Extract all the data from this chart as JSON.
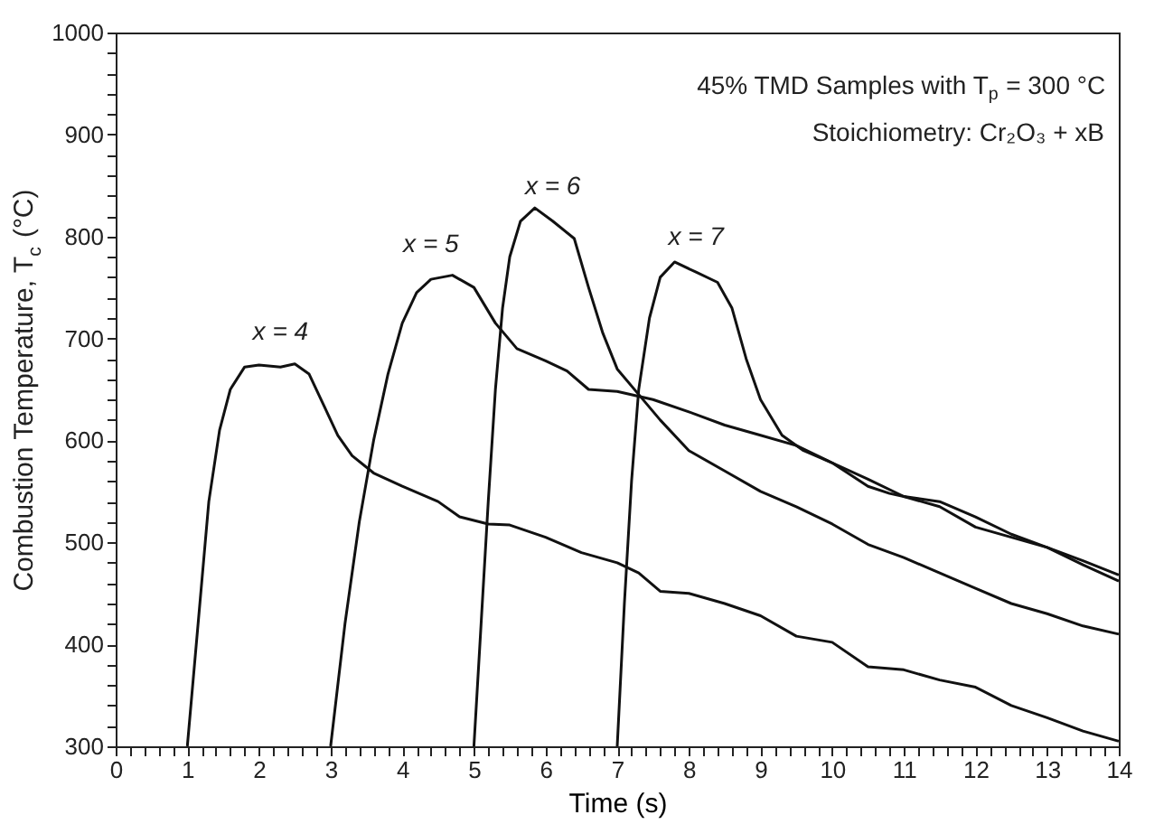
{
  "chart_data": {
    "type": "line",
    "xlabel": "Time (s)",
    "ylabel": "Combustion Temperature, T$_{c}$ (°C)",
    "xlim": [
      0,
      14
    ],
    "ylim": [
      300,
      1000
    ],
    "xticks": [
      0,
      {
        "value": 0.2,
        "label": null
      },
      {
        "value": 0.4,
        "label": null
      },
      {
        "value": 0.6,
        "label": null
      },
      {
        "value": 0.8,
        "label": null
      },
      1,
      {
        "value": 1.2,
        "label": null
      },
      {
        "value": 1.4,
        "label": null
      },
      {
        "value": 1.6,
        "label": null
      },
      {
        "value": 1.8,
        "label": null
      },
      2,
      {
        "value": 2.2,
        "label": null
      },
      {
        "value": 2.4,
        "label": null
      },
      {
        "value": 2.6,
        "label": null
      },
      {
        "value": 2.8,
        "label": null
      },
      3,
      {
        "value": 3.2,
        "label": null
      },
      {
        "value": 3.4,
        "label": null
      },
      {
        "value": 3.6,
        "label": null
      },
      {
        "value": 3.8,
        "label": null
      },
      4,
      {
        "value": 4.2,
        "label": null
      },
      {
        "value": 4.4,
        "label": null
      },
      {
        "value": 4.6,
        "label": null
      },
      {
        "value": 4.8,
        "label": null
      },
      5,
      {
        "value": 5.2,
        "label": null
      },
      {
        "value": 5.4,
        "label": null
      },
      {
        "value": 5.6,
        "label": null
      },
      {
        "value": 5.8,
        "label": null
      },
      6,
      {
        "value": 6.2,
        "label": null
      },
      {
        "value": 6.4,
        "label": null
      },
      {
        "value": 6.6,
        "label": null
      },
      {
        "value": 6.8,
        "label": null
      },
      7,
      {
        "value": 7.2,
        "label": null
      },
      {
        "value": 7.4,
        "label": null
      },
      {
        "value": 7.6,
        "label": null
      },
      {
        "value": 7.8,
        "label": null
      },
      8,
      {
        "value": 8.2,
        "label": null
      },
      {
        "value": 8.4,
        "label": null
      },
      {
        "value": 8.6,
        "label": null
      },
      {
        "value": 8.8,
        "label": null
      },
      9,
      {
        "value": 9.2,
        "label": null
      },
      {
        "value": 9.4,
        "label": null
      },
      {
        "value": 9.6,
        "label": null
      },
      {
        "value": 9.8,
        "label": null
      },
      10,
      {
        "value": 10.2,
        "label": null
      },
      {
        "value": 10.4,
        "label": null
      },
      {
        "value": 10.6,
        "label": null
      },
      {
        "value": 10.8,
        "label": null
      },
      11,
      {
        "value": 11.2,
        "label": null
      },
      {
        "value": 11.4,
        "label": null
      },
      {
        "value": 11.6,
        "label": null
      },
      {
        "value": 11.8,
        "label": null
      },
      12,
      {
        "value": 12.2,
        "label": null
      },
      {
        "value": 12.4,
        "label": null
      },
      {
        "value": 12.6,
        "label": null
      },
      {
        "value": 12.8,
        "label": null
      },
      13,
      {
        "value": 13.2,
        "label": null
      },
      {
        "value": 13.4,
        "label": null
      },
      {
        "value": 13.6,
        "label": null
      },
      {
        "value": 13.8,
        "label": null
      },
      14
    ],
    "yticks": [
      300,
      {
        "value": 320,
        "label": null
      },
      {
        "value": 340,
        "label": null
      },
      {
        "value": 360,
        "label": null
      },
      {
        "value": 380,
        "label": null
      },
      400,
      {
        "value": 420,
        "label": null
      },
      {
        "value": 440,
        "label": null
      },
      {
        "value": 460,
        "label": null
      },
      {
        "value": 480,
        "label": null
      },
      500,
      {
        "value": 520,
        "label": null
      },
      {
        "value": 540,
        "label": null
      },
      {
        "value": 560,
        "label": null
      },
      {
        "value": 580,
        "label": null
      },
      600,
      {
        "value": 620,
        "label": null
      },
      {
        "value": 640,
        "label": null
      },
      {
        "value": 660,
        "label": null
      },
      {
        "value": 680,
        "label": null
      },
      700,
      {
        "value": 720,
        "label": null
      },
      {
        "value": 740,
        "label": null
      },
      {
        "value": 760,
        "label": null
      },
      {
        "value": 780,
        "label": null
      },
      800,
      {
        "value": 820,
        "label": null
      },
      {
        "value": 840,
        "label": null
      },
      {
        "value": 860,
        "label": null
      },
      {
        "value": 880,
        "label": null
      },
      900,
      {
        "value": 920,
        "label": null
      },
      {
        "value": 940,
        "label": null
      },
      {
        "value": 960,
        "label": null
      },
      {
        "value": 980,
        "label": null
      },
      1000
    ],
    "grid": false,
    "legend": false,
    "line_style": "solid",
    "marker": "none",
    "series": [
      {
        "color": "#111111",
        "x": [
          1.0,
          1.15,
          1.3,
          1.45,
          1.6,
          1.8,
          2.0,
          2.3,
          2.5,
          2.7,
          2.9,
          3.1,
          3.3,
          3.6,
          4.0,
          4.5,
          4.8,
          5.2,
          5.5,
          6.0,
          6.5,
          7.0,
          7.3,
          7.6,
          8.0,
          8.5,
          9.0,
          9.5,
          10.0,
          10.5,
          11.0,
          11.5,
          12.0,
          12.5,
          13.0,
          13.5,
          14.0
        ],
        "values": [
          300,
          420,
          540,
          610,
          650,
          672,
          674,
          672,
          675,
          665,
          635,
          605,
          585,
          568,
          555,
          540,
          525,
          518,
          517,
          505,
          490,
          480,
          470,
          452,
          450,
          440,
          428,
          408,
          402,
          378,
          375,
          365,
          358,
          340,
          328,
          315,
          305
        ]
      },
      {
        "color": "#111111",
        "x": [
          3.0,
          3.2,
          3.4,
          3.6,
          3.8,
          4.0,
          4.2,
          4.4,
          4.7,
          5.0,
          5.3,
          5.6,
          6.0,
          6.3,
          6.6,
          7.0,
          7.5,
          8.0,
          8.5,
          9.0,
          9.5,
          10.0,
          10.5,
          11.0,
          11.5,
          12.0,
          12.5,
          13.0,
          13.5,
          14.0
        ],
        "values": [
          300,
          420,
          520,
          600,
          665,
          715,
          745,
          758,
          762,
          750,
          715,
          690,
          678,
          668,
          650,
          648,
          640,
          628,
          615,
          605,
          595,
          578,
          562,
          545,
          540,
          525,
          508,
          495,
          482,
          468
        ]
      },
      {
        "color": "#111111",
        "x": [
          5.0,
          5.1,
          5.2,
          5.3,
          5.4,
          5.5,
          5.65,
          5.85,
          6.1,
          6.4,
          6.6,
          6.8,
          7.0,
          7.3,
          7.6,
          8.0,
          8.5,
          9.0,
          9.5,
          10.0,
          10.5,
          11.0,
          11.5,
          12.0,
          12.5,
          13.0,
          13.5,
          14.0
        ],
        "values": [
          300,
          420,
          540,
          650,
          730,
          780,
          815,
          828,
          815,
          798,
          750,
          705,
          670,
          645,
          620,
          590,
          570,
          550,
          535,
          518,
          498,
          485,
          470,
          455,
          440,
          430,
          418,
          410
        ]
      },
      {
        "color": "#111111",
        "x": [
          7.0,
          7.1,
          7.2,
          7.3,
          7.45,
          7.6,
          7.8,
          8.1,
          8.4,
          8.6,
          8.8,
          9.0,
          9.3,
          9.6,
          10.0,
          10.5,
          10.8,
          11.0,
          11.5,
          12.0,
          12.5,
          13.0,
          13.5,
          14.0
        ],
        "values": [
          300,
          440,
          560,
          650,
          720,
          760,
          775,
          765,
          755,
          730,
          680,
          640,
          605,
          590,
          578,
          555,
          548,
          545,
          535,
          515,
          505,
          495,
          478,
          462
        ]
      }
    ],
    "annotations": [
      "45% TMD Samples with T$_{p}$ = 300 °C",
      "Stoichiometry: Cr₂O₃ + xB",
      {
        "text": "x = 4",
        "x": 2.3,
        "y": 672
      },
      {
        "text": "x = 5",
        "x": 4.4,
        "y": 758
      },
      {
        "text": "x = 6",
        "x": 6.1,
        "y": 815
      },
      {
        "text": "x = 7",
        "x": 8.1,
        "y": 765
      }
    ]
  }
}
